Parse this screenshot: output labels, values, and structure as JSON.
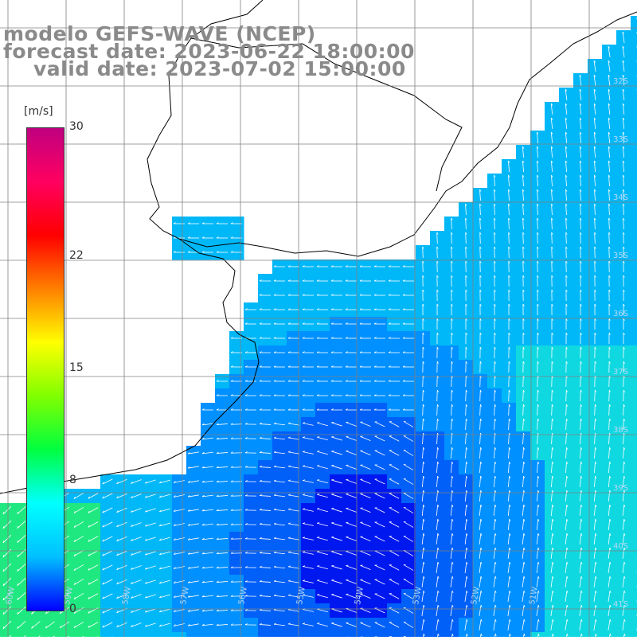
{
  "title": {
    "line1": "modelo GEFS-WAVE (NCEP)",
    "line2": "forecast date: 2023-06-22 18:00:00",
    "line3": "valid date: 2023-07-02 15:00:00"
  },
  "colorbar": {
    "unit": "[m/s]",
    "ticks": [
      {
        "label": "30",
        "value": 30
      },
      {
        "label": "22",
        "value": 22
      },
      {
        "label": "15",
        "value": 15
      },
      {
        "label": "8",
        "value": 8
      },
      {
        "label": "0",
        "value": 0
      }
    ],
    "stops": [
      "#0000ff",
      "#00c0ff",
      "#00ffff",
      "#00ff40",
      "#80ff00",
      "#ffff00",
      "#ff8000",
      "#ff0000",
      "#ff0060",
      "#c00080"
    ]
  },
  "map": {
    "lat_labels": [
      "32S",
      "33S",
      "34S",
      "35S",
      "36S",
      "37S",
      "38S",
      "39S",
      "40S",
      "41S"
    ],
    "lon_labels": [
      "60W",
      "59W",
      "58W",
      "57W",
      "56W",
      "55W",
      "54W",
      "53W",
      "52W",
      "51W"
    ],
    "land_color": "#ffffff",
    "grid_color": "#808080",
    "arrow_color": "#ffffff"
  }
}
